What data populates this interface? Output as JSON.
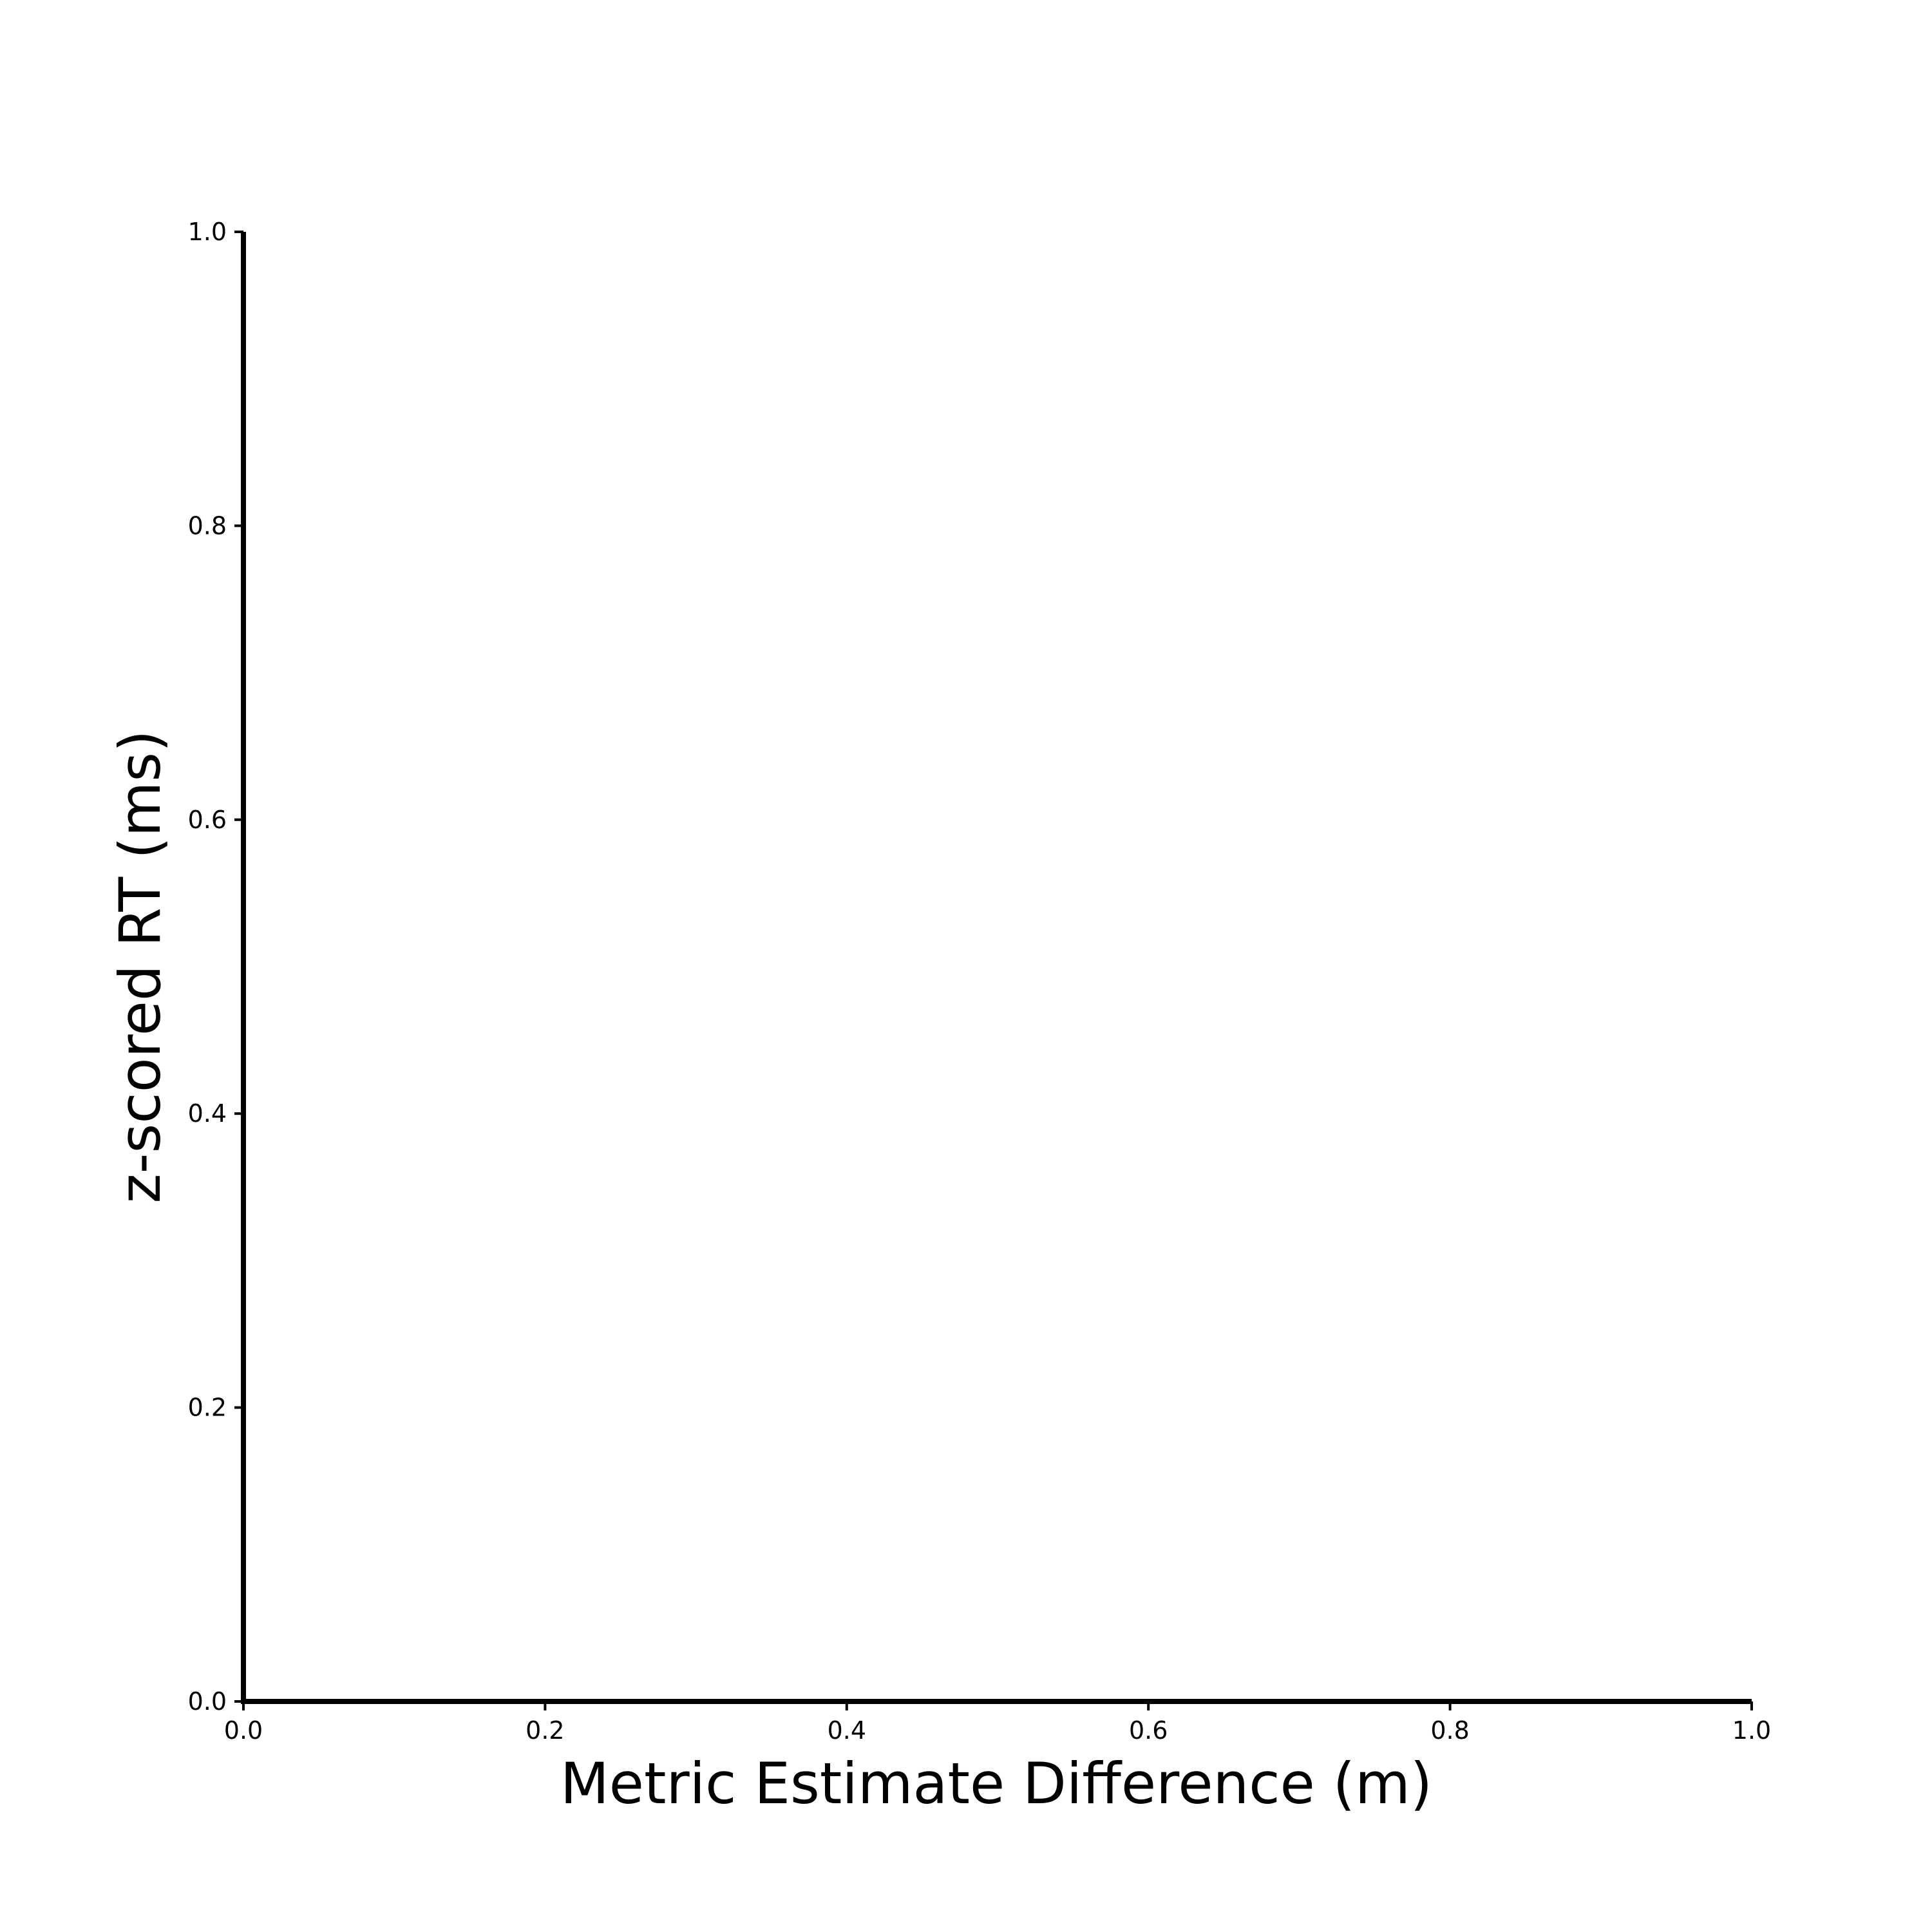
{
  "chart_data": {
    "type": "scatter",
    "title": "",
    "xlabel": "Metric Estimate Difference (m)",
    "ylabel": "z-scored RT (ms)",
    "xlim": [
      0.0,
      1.0
    ],
    "ylim": [
      0.0,
      1.0
    ],
    "xticks": [
      "0.0",
      "0.2",
      "0.4",
      "0.6",
      "0.8",
      "1.0"
    ],
    "yticks": [
      "0.0",
      "0.2",
      "0.4",
      "0.6",
      "0.8",
      "1.0"
    ],
    "grid": false,
    "legend": "none",
    "series": []
  },
  "colors": {
    "axis": "#000000",
    "background": "#ffffff"
  }
}
